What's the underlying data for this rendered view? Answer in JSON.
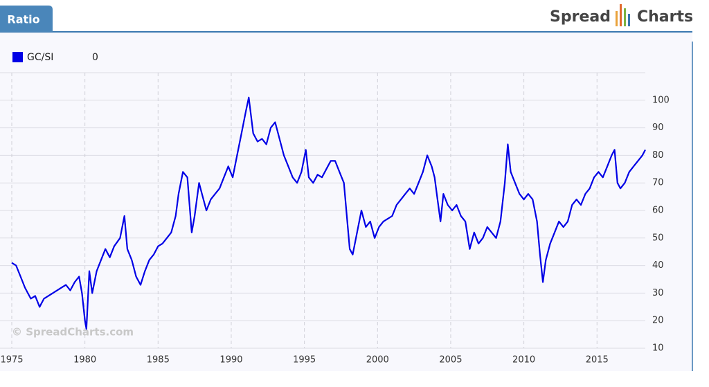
{
  "chart_data": {
    "type": "line",
    "title": "Ratio",
    "logo_left": "Spread",
    "logo_right": "Charts",
    "annotations": [
      "© SpreadCharts.com"
    ],
    "legend_value": 0,
    "xlim": [
      1975,
      2018.3
    ],
    "xticks": [
      1975,
      1980,
      1985,
      1990,
      1995,
      2000,
      2005,
      2010,
      2015
    ],
    "ylim": [
      10,
      110
    ],
    "yticks": [
      10,
      20,
      30,
      40,
      50,
      60,
      70,
      80,
      90,
      100
    ],
    "grid": true,
    "x": [
      1975.0,
      1975.3,
      1975.6,
      1975.9,
      1976.1,
      1976.3,
      1976.6,
      1976.9,
      1977.2,
      1977.5,
      1977.8,
      1978.1,
      1978.4,
      1978.7,
      1979.0,
      1979.3,
      1979.6,
      1979.8,
      1980.0,
      1980.1,
      1980.3,
      1980.5,
      1980.8,
      1981.1,
      1981.4,
      1981.7,
      1982.0,
      1982.4,
      1982.7,
      1982.9,
      1983.2,
      1983.5,
      1983.8,
      1984.1,
      1984.4,
      1984.7,
      1985.0,
      1985.3,
      1985.6,
      1985.9,
      1986.2,
      1986.4,
      1986.7,
      1987.0,
      1987.3,
      1987.5,
      1987.8,
      1988.0,
      1988.3,
      1988.6,
      1988.9,
      1989.2,
      1989.5,
      1989.8,
      1990.1,
      1990.4,
      1990.7,
      1991.0,
      1991.2,
      1991.5,
      1991.8,
      1992.1,
      1992.4,
      1992.7,
      1993.0,
      1993.3,
      1993.6,
      1993.9,
      1994.2,
      1994.5,
      1994.8,
      1995.1,
      1995.3,
      1995.6,
      1995.9,
      1996.2,
      1996.5,
      1996.8,
      1997.1,
      1997.4,
      1997.7,
      1997.9,
      1998.1,
      1998.3,
      1998.6,
      1998.9,
      1999.2,
      1999.5,
      1999.8,
      2000.1,
      2000.4,
      2000.7,
      2001.0,
      2001.3,
      2001.6,
      2001.9,
      2002.2,
      2002.5,
      2002.8,
      2003.1,
      2003.4,
      2003.7,
      2003.9,
      2004.1,
      2004.3,
      2004.5,
      2004.8,
      2005.1,
      2005.4,
      2005.7,
      2006.0,
      2006.3,
      2006.6,
      2006.9,
      2007.2,
      2007.5,
      2007.8,
      2008.1,
      2008.4,
      2008.7,
      2008.9,
      2009.1,
      2009.4,
      2009.7,
      2010.0,
      2010.3,
      2010.6,
      2010.9,
      2011.1,
      2011.3,
      2011.5,
      2011.8,
      2012.1,
      2012.4,
      2012.7,
      2013.0,
      2013.3,
      2013.6,
      2013.9,
      2014.2,
      2014.5,
      2014.8,
      2015.1,
      2015.4,
      2015.7,
      2016.0,
      2016.2,
      2016.4,
      2016.6,
      2016.9,
      2017.2,
      2017.5,
      2017.8,
      2018.1,
      2018.3
    ],
    "series": [
      {
        "name": "GC/SI",
        "color": "#0000e6",
        "values": [
          41,
          40,
          36,
          32,
          30,
          28,
          29,
          25,
          28,
          29,
          30,
          31,
          32,
          33,
          31,
          34,
          36,
          30,
          20,
          17,
          38,
          30,
          38,
          42,
          46,
          43,
          47,
          50,
          58,
          46,
          42,
          36,
          33,
          38,
          42,
          44,
          47,
          48,
          50,
          52,
          58,
          66,
          74,
          72,
          52,
          58,
          70,
          66,
          60,
          64,
          66,
          68,
          72,
          76,
          72,
          80,
          88,
          96,
          101,
          88,
          85,
          86,
          84,
          90,
          92,
          86,
          80,
          76,
          72,
          70,
          74,
          82,
          72,
          70,
          73,
          72,
          75,
          78,
          78,
          74,
          70,
          58,
          46,
          44,
          52,
          60,
          54,
          56,
          50,
          54,
          56,
          57,
          58,
          62,
          64,
          66,
          68,
          66,
          70,
          74,
          80,
          76,
          72,
          64,
          56,
          66,
          62,
          60,
          62,
          58,
          56,
          46,
          52,
          48,
          50,
          54,
          52,
          50,
          56,
          70,
          84,
          74,
          70,
          66,
          64,
          66,
          64,
          56,
          44,
          34,
          42,
          48,
          52,
          56,
          54,
          56,
          62,
          64,
          62,
          66,
          68,
          72,
          74,
          72,
          76,
          80,
          82,
          70,
          68,
          70,
          74,
          76,
          78,
          80,
          82
        ]
      }
    ]
  }
}
